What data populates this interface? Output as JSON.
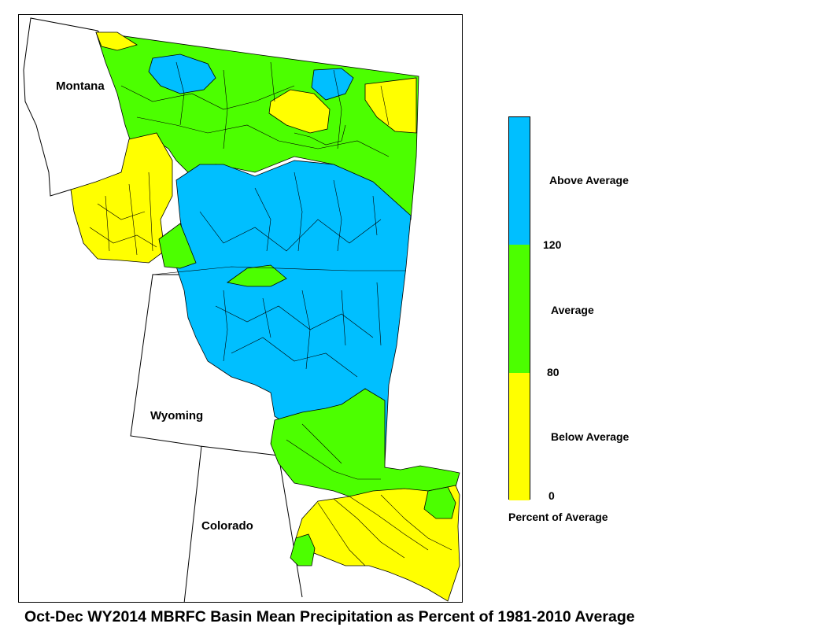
{
  "map": {
    "states": [
      {
        "name": "Montana"
      },
      {
        "name": "Wyoming"
      },
      {
        "name": "Colorado"
      }
    ]
  },
  "legend": {
    "classes": [
      {
        "label": "Above Average",
        "color": "#00bfff",
        "range": [
          120,
          null
        ]
      },
      {
        "label": "Average",
        "color": "#4cff00",
        "range": [
          80,
          120
        ]
      },
      {
        "label": "Below Average",
        "color": "#ffff00",
        "range": [
          0,
          80
        ]
      }
    ],
    "break_labels": [
      "120",
      "80",
      "0"
    ],
    "units_label": "Percent of Average"
  },
  "title": "Oct-Dec WY2014 MBRFC Basin Mean Precipitation as Percent of 1981-2010 Average"
}
